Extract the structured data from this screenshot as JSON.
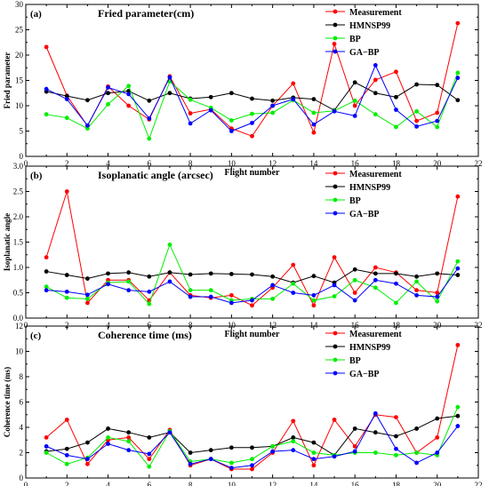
{
  "chart_data": [
    {
      "type": "line",
      "panel_label": "(a)",
      "title": "Fried parameter(cm)",
      "xlabel": "Flight number",
      "ylabel": "Fried parameter",
      "xlim": [
        0,
        22
      ],
      "ylim": [
        0,
        30
      ],
      "xticks": [
        0,
        2,
        4,
        6,
        8,
        10,
        12,
        14,
        16,
        18,
        20,
        22
      ],
      "yticks": [
        0,
        5,
        10,
        15,
        20,
        25,
        30
      ],
      "legend_position": "top-right",
      "x": [
        1,
        2,
        3,
        4,
        5,
        6,
        7,
        8,
        9,
        10,
        11,
        12,
        13,
        14,
        15,
        16,
        17,
        18,
        19,
        20,
        21
      ],
      "series": [
        {
          "name": "Measurement",
          "color": "#ff0000",
          "values": [
            21.6,
            12.0,
            6.0,
            13.8,
            10.0,
            7.3,
            15.8,
            8.5,
            9.3,
            5.5,
            4.0,
            10.0,
            14.4,
            4.7,
            22.2,
            10.0,
            15.1,
            16.7,
            7.0,
            8.6,
            26.3
          ]
        },
        {
          "name": "HMNSP99",
          "color": "#000000",
          "values": [
            12.8,
            11.9,
            11.1,
            12.5,
            12.9,
            11.0,
            12.5,
            11.4,
            11.7,
            12.5,
            11.4,
            11.0,
            11.6,
            11.3,
            9.1,
            14.6,
            12.5,
            11.7,
            14.2,
            14.1,
            11.1
          ]
        },
        {
          "name": "BP",
          "color": "#00ee00",
          "values": [
            8.3,
            7.6,
            5.5,
            10.3,
            13.9,
            3.5,
            14.8,
            11.2,
            9.6,
            7.1,
            8.4,
            8.6,
            11.1,
            8.6,
            9.0,
            11.0,
            8.3,
            5.8,
            8.9,
            5.8,
            16.5
          ]
        },
        {
          "name": "GA−BP",
          "color": "#0000ff",
          "values": [
            13.3,
            11.3,
            6.1,
            13.6,
            12.3,
            7.5,
            15.6,
            6.5,
            9.1,
            5.0,
            6.6,
            10.0,
            11.3,
            6.3,
            8.9,
            8.0,
            18.0,
            9.2,
            5.9,
            7.0,
            15.5
          ]
        }
      ]
    },
    {
      "type": "line",
      "panel_label": "(b)",
      "title": "Isoplanatic angle (arcsec)",
      "xlabel": "Flight number",
      "ylabel": "Isoplanatic angle",
      "xlim": [
        0,
        22
      ],
      "ylim": [
        0,
        3.0
      ],
      "xticks": [
        0,
        2,
        4,
        6,
        8,
        10,
        12,
        14,
        16,
        18,
        20,
        22
      ],
      "yticks": [
        0.0,
        0.5,
        1.0,
        1.5,
        2.0,
        2.5,
        3.0
      ],
      "legend_position": "top-right",
      "x": [
        1,
        2,
        3,
        4,
        5,
        6,
        7,
        8,
        9,
        10,
        11,
        12,
        13,
        14,
        15,
        16,
        17,
        18,
        19,
        20,
        21
      ],
      "series": [
        {
          "name": "Measurement",
          "color": "#ff0000",
          "values": [
            1.2,
            2.5,
            0.3,
            0.75,
            0.75,
            0.35,
            0.9,
            0.45,
            0.4,
            0.45,
            0.25,
            0.6,
            1.05,
            0.25,
            1.2,
            0.5,
            1.0,
            0.9,
            0.55,
            0.5,
            2.4
          ]
        },
        {
          "name": "HMNSP99",
          "color": "#000000",
          "values": [
            0.92,
            0.85,
            0.78,
            0.88,
            0.9,
            0.82,
            0.9,
            0.86,
            0.88,
            0.87,
            0.86,
            0.82,
            0.7,
            0.83,
            0.7,
            0.96,
            0.88,
            0.88,
            0.82,
            0.88,
            0.85
          ]
        },
        {
          "name": "BP",
          "color": "#00ee00",
          "values": [
            0.62,
            0.4,
            0.38,
            0.7,
            0.72,
            0.28,
            1.45,
            0.55,
            0.55,
            0.35,
            0.38,
            0.38,
            0.68,
            0.35,
            0.43,
            0.75,
            0.6,
            0.3,
            0.72,
            0.33,
            1.12
          ]
        },
        {
          "name": "GA−BP",
          "color": "#0000ff",
          "values": [
            0.55,
            0.52,
            0.46,
            0.67,
            0.55,
            0.52,
            0.72,
            0.42,
            0.42,
            0.3,
            0.35,
            0.65,
            0.5,
            0.45,
            0.65,
            0.35,
            0.75,
            0.68,
            0.45,
            0.42,
            0.98
          ]
        }
      ]
    },
    {
      "type": "line",
      "panel_label": "(c)",
      "title": "Coherence time (ms)",
      "xlabel": "Flight number",
      "ylabel": "Coherence time (ms)",
      "xlim": [
        0,
        22
      ],
      "ylim": [
        0,
        12
      ],
      "xticks": [
        0,
        2,
        4,
        6,
        8,
        10,
        12,
        14,
        16,
        18,
        20,
        22
      ],
      "yticks": [
        0,
        2,
        4,
        6,
        8,
        10,
        12
      ],
      "legend_position": "top-right",
      "x": [
        1,
        2,
        3,
        4,
        5,
        6,
        7,
        8,
        9,
        10,
        11,
        12,
        13,
        14,
        15,
        16,
        17,
        18,
        19,
        20,
        21
      ],
      "series": [
        {
          "name": "Measurement",
          "color": "#ff0000",
          "values": [
            3.2,
            4.6,
            1.1,
            3.0,
            3.2,
            1.5,
            3.8,
            1.0,
            1.5,
            0.7,
            0.7,
            2.0,
            4.5,
            1.0,
            4.6,
            2.5,
            5.0,
            4.8,
            2.0,
            3.2,
            10.5
          ]
        },
        {
          "name": "HMNSP99",
          "color": "#000000",
          "values": [
            2.1,
            2.3,
            2.8,
            3.9,
            3.6,
            3.2,
            3.6,
            2.0,
            2.2,
            2.4,
            2.4,
            2.5,
            3.2,
            2.8,
            1.8,
            3.9,
            3.6,
            3.3,
            3.9,
            4.7,
            4.9
          ]
        },
        {
          "name": "BP",
          "color": "#00ee00",
          "values": [
            2.0,
            1.1,
            1.6,
            3.2,
            2.9,
            0.9,
            3.7,
            1.3,
            1.5,
            1.2,
            1.5,
            2.5,
            2.9,
            2.0,
            1.8,
            2.0,
            2.0,
            1.8,
            2.0,
            1.8,
            5.6
          ]
        },
        {
          "name": "GA−BP",
          "color": "#0000ff",
          "values": [
            2.5,
            1.8,
            1.5,
            2.7,
            2.2,
            1.9,
            3.6,
            1.1,
            1.5,
            0.8,
            1.0,
            2.1,
            2.2,
            1.5,
            1.7,
            2.1,
            5.1,
            2.3,
            1.2,
            2.0,
            4.1
          ]
        }
      ]
    }
  ]
}
